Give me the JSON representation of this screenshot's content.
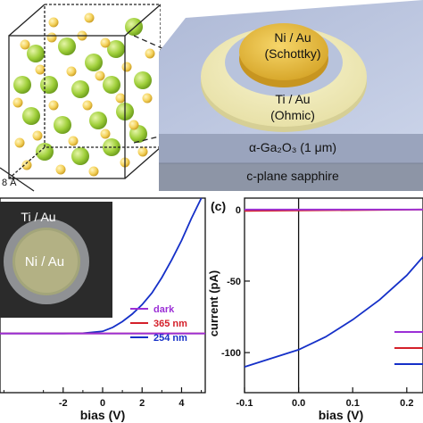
{
  "panel_a": {
    "lattice_label": "8 Å"
  },
  "panel_b": {
    "schottky_contact": "Ni / Au",
    "schottky_note": "(Schottky)",
    "ohmic_contact": "Ti / Au",
    "ohmic_note": "(Ohmic)",
    "film_layer": "α-Ga₂O₃ (1 μm)",
    "substrate_layer": "c-plane sapphire"
  },
  "colors": {
    "dark": "#9b2fd6",
    "nm365": "#d4202a",
    "nm254": "#1530c8"
  },
  "chart_data": [
    {
      "type": "line",
      "panel": "left I-V (partial)",
      "xlabel": "bias (V)",
      "x_ticks": [
        "-2",
        "0",
        "2",
        "4"
      ],
      "xlim": [
        -5.2,
        5.2
      ],
      "inset": {
        "outer_label": "Ti / Au",
        "inner_label": "Ni / Au"
      },
      "legend": {
        "placement": "right-middle",
        "entries": [
          "dark",
          "365 nm",
          "254 nm"
        ]
      },
      "series": [
        {
          "name": "dark",
          "x": [
            -5.2,
            5.2
          ],
          "y": [
            0,
            0
          ]
        },
        {
          "name": "365 nm",
          "x": [
            -5.2,
            5.2
          ],
          "y": [
            0,
            0
          ]
        },
        {
          "name": "254 nm",
          "x": [
            -5.2,
            -2,
            -1,
            0,
            0.5,
            1,
            1.5,
            2,
            2.5,
            3,
            3.5,
            4,
            4.5,
            5
          ],
          "y": [
            0,
            0,
            0.03,
            0.25,
            0.7,
            1.4,
            2.3,
            3.4,
            4.8,
            6.6,
            8.7,
            11.0,
            13.6,
            16.0
          ]
        }
      ]
    },
    {
      "type": "line",
      "panel_label": "(c)",
      "xlabel": "bias (V)",
      "ylabel": "current (pA)",
      "x_ticks": [
        "-0.1",
        "0.0",
        "0.1",
        "0.2"
      ],
      "y_ticks": [
        "0",
        "-50",
        "-100"
      ],
      "xlim": [
        -0.1,
        0.23
      ],
      "ylim": [
        -128,
        8
      ],
      "series": [
        {
          "name": "dark",
          "x": [
            -0.1,
            0.23
          ],
          "y": [
            0,
            0
          ]
        },
        {
          "name": "365 nm",
          "x": [
            -0.1,
            0.23
          ],
          "y": [
            -1,
            0
          ]
        },
        {
          "name": "254 nm",
          "x": [
            -0.1,
            -0.05,
            0,
            0.05,
            0.1,
            0.15,
            0.2,
            0.23
          ],
          "y": [
            -110,
            -104,
            -98,
            -89,
            -77,
            -63,
            -46,
            -33
          ]
        }
      ]
    }
  ]
}
